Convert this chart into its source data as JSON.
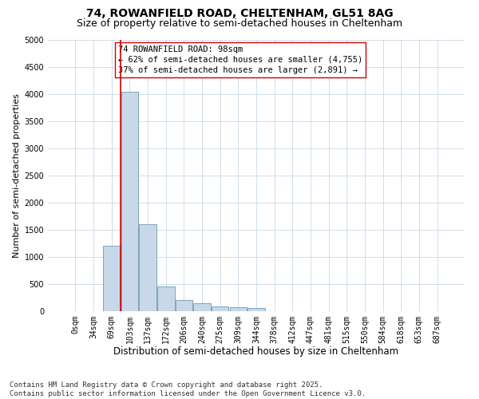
{
  "title1": "74, ROWANFIELD ROAD, CHELTENHAM, GL51 8AG",
  "title2": "Size of property relative to semi-detached houses in Cheltenham",
  "xlabel": "Distribution of semi-detached houses by size in Cheltenham",
  "ylabel": "Number of semi-detached properties",
  "bar_labels": [
    "0sqm",
    "34sqm",
    "69sqm",
    "103sqm",
    "137sqm",
    "172sqm",
    "206sqm",
    "240sqm",
    "275sqm",
    "309sqm",
    "344sqm",
    "378sqm",
    "412sqm",
    "447sqm",
    "481sqm",
    "515sqm",
    "550sqm",
    "584sqm",
    "618sqm",
    "653sqm",
    "687sqm"
  ],
  "bar_heights": [
    0,
    0,
    1200,
    4050,
    1600,
    450,
    200,
    150,
    90,
    80,
    60,
    0,
    0,
    0,
    0,
    0,
    0,
    0,
    0,
    0,
    0
  ],
  "bar_color": "#c8d8e8",
  "bar_edge_color": "#5588aa",
  "annotation_line1": "74 ROWANFIELD ROAD: 98sqm",
  "annotation_line2": "← 62% of semi-detached houses are smaller (4,755)",
  "annotation_line3": "37% of semi-detached houses are larger (2,891) →",
  "vline_color": "#cc0000",
  "vline_x_index": 2.5,
  "ylim": [
    0,
    5000
  ],
  "yticks": [
    0,
    500,
    1000,
    1500,
    2000,
    2500,
    3000,
    3500,
    4000,
    4500,
    5000
  ],
  "grid_color": "#c8d8e8",
  "background_color": "#ffffff",
  "footnote": "Contains HM Land Registry data © Crown copyright and database right 2025.\nContains public sector information licensed under the Open Government Licence v3.0.",
  "title1_fontsize": 10,
  "title2_fontsize": 9,
  "xlabel_fontsize": 8.5,
  "ylabel_fontsize": 8,
  "tick_fontsize": 7,
  "annotation_fontsize": 7.5,
  "footnote_fontsize": 6.5
}
